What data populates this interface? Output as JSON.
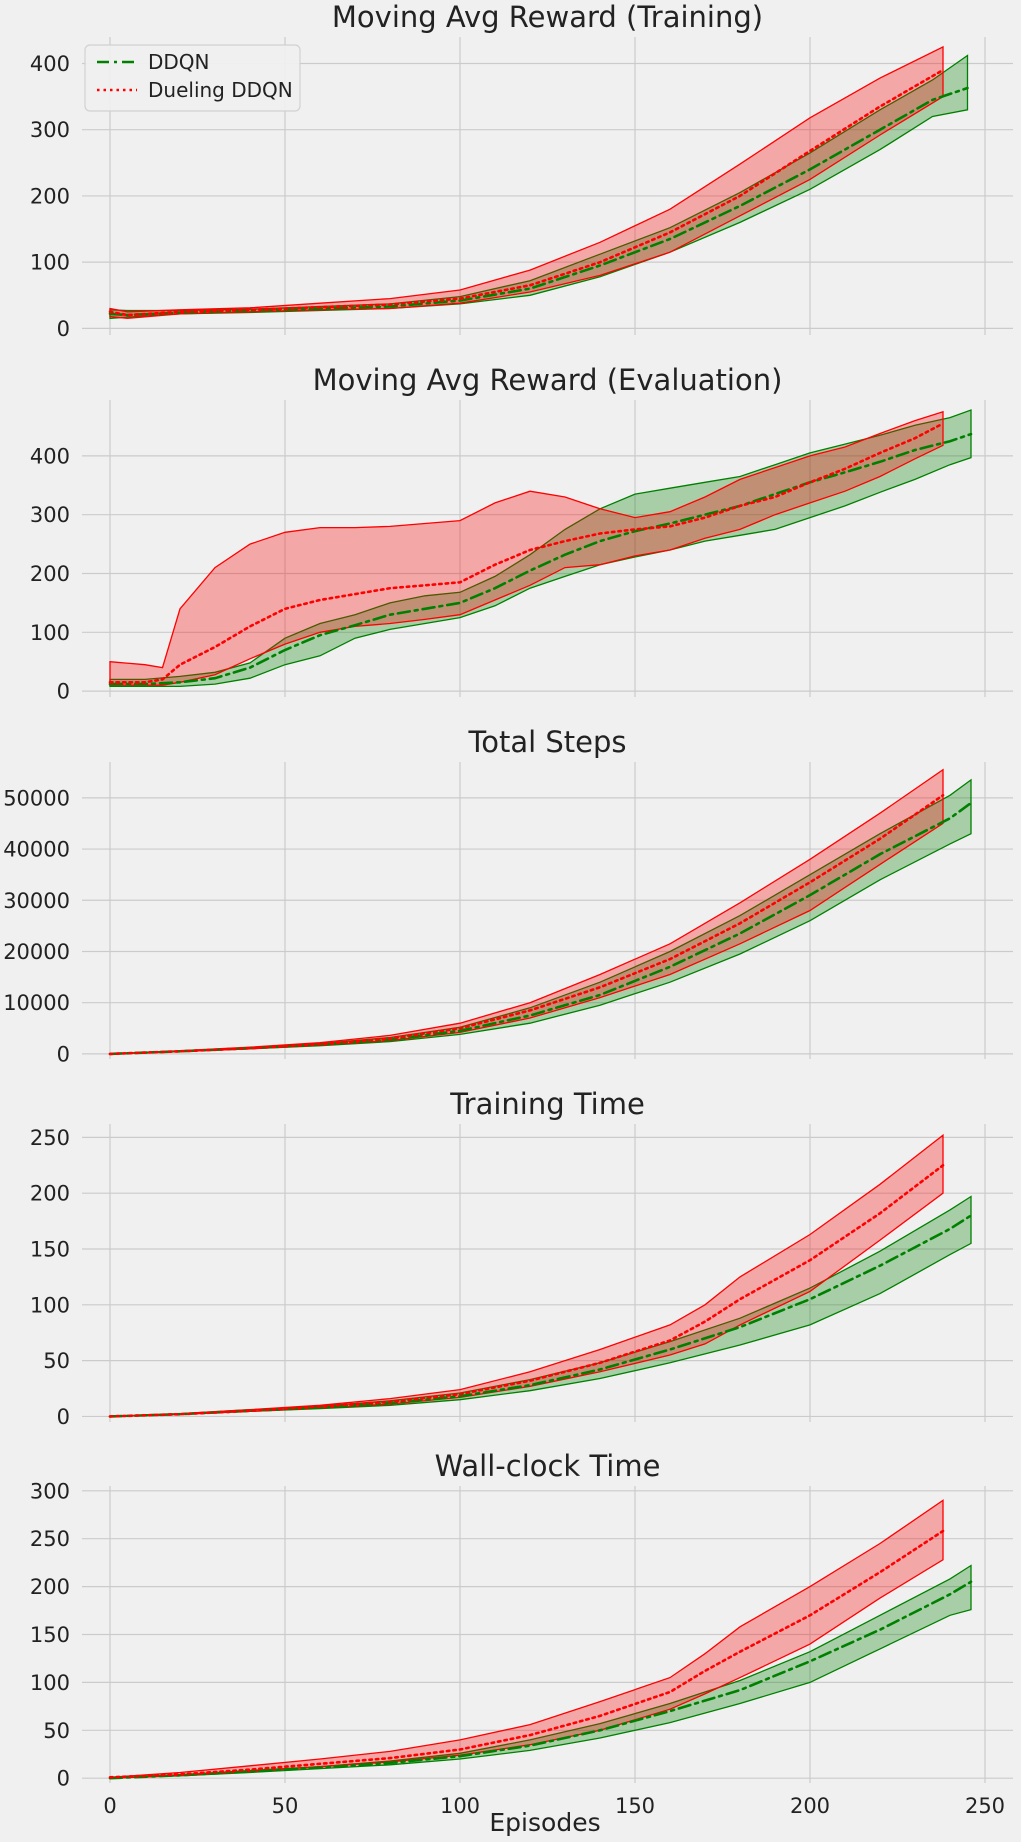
{
  "figure": {
    "xlabel": "Episodes",
    "xlim": [
      -8,
      258
    ],
    "xticks": [
      0,
      50,
      100,
      150,
      200,
      250
    ],
    "legend": {
      "placement": "top-left",
      "in_panel": 0
    }
  },
  "colors": {
    "ddqn": "#008000",
    "dueling": "#ff0000",
    "ddqn_fill": "rgba(0,128,0,0.3)",
    "dueling_fill": "rgba(255,0,0,0.3)",
    "background": "#f0f0f0",
    "grid": "#cbcbcb"
  },
  "chart_data": [
    {
      "type": "line",
      "title": "Moving Avg Reward (Training)",
      "xlabel": "",
      "ylabel": "",
      "ylim": [
        -10,
        440
      ],
      "yticks": [
        0,
        100,
        200,
        300,
        400
      ],
      "grid": true,
      "series": [
        {
          "name": "DDQN",
          "style": "dashdot",
          "color": "#008000",
          "x": [
            0,
            5,
            20,
            40,
            60,
            80,
            100,
            120,
            140,
            160,
            180,
            200,
            220,
            235,
            245
          ],
          "mean": [
            22,
            20,
            24,
            27,
            30,
            33,
            42,
            60,
            95,
            135,
            185,
            240,
            300,
            345,
            363
          ],
          "upper": [
            28,
            27,
            27,
            29,
            33,
            37,
            48,
            72,
            112,
            152,
            205,
            265,
            330,
            375,
            412
          ],
          "lower": [
            15,
            17,
            22,
            24,
            27,
            30,
            37,
            50,
            78,
            115,
            160,
            210,
            270,
            320,
            330
          ]
        },
        {
          "name": "Dueling DDQN",
          "style": "dotted",
          "color": "#ff0000",
          "x": [
            0,
            5,
            20,
            40,
            60,
            80,
            100,
            120,
            140,
            160,
            180,
            200,
            220,
            238
          ],
          "mean": [
            25,
            20,
            25,
            28,
            32,
            36,
            45,
            65,
            100,
            145,
            200,
            268,
            335,
            390
          ],
          "upper": [
            30,
            25,
            28,
            31,
            38,
            45,
            58,
            88,
            130,
            180,
            248,
            318,
            378,
            425
          ],
          "lower": [
            18,
            15,
            22,
            25,
            28,
            30,
            38,
            55,
            80,
            115,
            170,
            225,
            292,
            350
          ]
        }
      ]
    },
    {
      "type": "line",
      "title": "Moving Avg Reward (Evaluation)",
      "xlabel": "",
      "ylabel": "",
      "ylim": [
        -10,
        495
      ],
      "yticks": [
        0,
        100,
        200,
        300,
        400
      ],
      "grid": true,
      "series": [
        {
          "name": "DDQN",
          "style": "dashdot",
          "color": "#008000",
          "x": [
            0,
            10,
            20,
            30,
            40,
            50,
            60,
            70,
            80,
            90,
            100,
            110,
            120,
            130,
            140,
            150,
            160,
            170,
            180,
            190,
            200,
            210,
            220,
            230,
            240,
            246
          ],
          "mean": [
            12,
            12,
            15,
            22,
            40,
            70,
            95,
            112,
            130,
            140,
            150,
            175,
            205,
            232,
            255,
            272,
            285,
            300,
            315,
            335,
            355,
            372,
            390,
            410,
            425,
            437
          ],
          "upper": [
            20,
            20,
            25,
            32,
            48,
            90,
            115,
            130,
            150,
            162,
            168,
            195,
            232,
            275,
            310,
            335,
            345,
            355,
            365,
            385,
            405,
            420,
            435,
            452,
            465,
            478
          ],
          "lower": [
            8,
            8,
            8,
            12,
            22,
            45,
            60,
            90,
            105,
            115,
            125,
            145,
            175,
            195,
            215,
            228,
            240,
            255,
            265,
            275,
            295,
            315,
            338,
            360,
            385,
            397
          ]
        },
        {
          "name": "Dueling DDQN",
          "style": "dotted",
          "color": "#ff0000",
          "x": [
            0,
            10,
            15,
            20,
            30,
            40,
            50,
            60,
            70,
            80,
            90,
            100,
            110,
            120,
            130,
            140,
            150,
            160,
            170,
            180,
            190,
            200,
            210,
            220,
            230,
            238
          ],
          "mean": [
            15,
            15,
            20,
            45,
            75,
            110,
            140,
            155,
            165,
            175,
            180,
            185,
            215,
            240,
            255,
            268,
            275,
            280,
            295,
            315,
            330,
            355,
            378,
            405,
            430,
            455
          ],
          "upper": [
            50,
            45,
            40,
            140,
            210,
            250,
            270,
            278,
            278,
            280,
            285,
            290,
            320,
            340,
            330,
            310,
            295,
            305,
            330,
            360,
            380,
            400,
            415,
            438,
            460,
            475
          ],
          "lower": [
            10,
            10,
            10,
            15,
            28,
            55,
            80,
            100,
            110,
            115,
            122,
            130,
            155,
            180,
            210,
            215,
            230,
            240,
            260,
            275,
            300,
            320,
            340,
            365,
            395,
            418
          ]
        }
      ]
    },
    {
      "type": "line",
      "title": "Total Steps",
      "xlabel": "",
      "ylabel": "",
      "ylim": [
        -1000,
        57000
      ],
      "yticks": [
        0,
        10000,
        20000,
        30000,
        40000,
        50000
      ],
      "grid": true,
      "series": [
        {
          "name": "DDQN",
          "style": "dashdot",
          "color": "#008000",
          "x": [
            0,
            20,
            40,
            60,
            80,
            100,
            120,
            140,
            160,
            180,
            200,
            220,
            240,
            246
          ],
          "mean": [
            0,
            500,
            1100,
            1800,
            2800,
            4500,
            7500,
            11500,
            17000,
            23500,
            31000,
            39000,
            46000,
            49000
          ],
          "upper": [
            0,
            600,
            1200,
            2000,
            3200,
            5200,
            9000,
            14000,
            20000,
            27000,
            35000,
            43000,
            50500,
            53500
          ],
          "lower": [
            0,
            450,
            1000,
            1600,
            2400,
            3800,
            6000,
            9500,
            14000,
            19500,
            26000,
            34000,
            41000,
            43000
          ]
        },
        {
          "name": "Dueling DDQN",
          "style": "dotted",
          "color": "#ff0000",
          "x": [
            0,
            20,
            40,
            60,
            80,
            100,
            120,
            140,
            160,
            180,
            200,
            220,
            238
          ],
          "mean": [
            0,
            500,
            1100,
            1900,
            3000,
            5000,
            8500,
            13000,
            18500,
            25500,
            33500,
            42000,
            50500
          ],
          "upper": [
            0,
            600,
            1300,
            2200,
            3600,
            6000,
            10000,
            15500,
            21500,
            29500,
            38000,
            47000,
            55500
          ],
          "lower": [
            0,
            450,
            1000,
            1700,
            2600,
            4200,
            7000,
            11000,
            15500,
            21500,
            28000,
            37000,
            45000
          ]
        }
      ]
    },
    {
      "type": "line",
      "title": "Training Time",
      "xlabel": "",
      "ylabel": "",
      "ylim": [
        -5,
        262
      ],
      "yticks": [
        0,
        50,
        100,
        150,
        200,
        250
      ],
      "grid": true,
      "series": [
        {
          "name": "DDQN",
          "style": "dashdot",
          "color": "#008000",
          "x": [
            0,
            20,
            40,
            60,
            80,
            100,
            120,
            140,
            160,
            180,
            200,
            220,
            240,
            246
          ],
          "mean": [
            0,
            2,
            5,
            8,
            12,
            18,
            28,
            42,
            60,
            80,
            105,
            135,
            168,
            180
          ],
          "upper": [
            0,
            2.5,
            6,
            9,
            14,
            21,
            33,
            48,
            67,
            88,
            115,
            148,
            185,
            197
          ],
          "lower": [
            0,
            1.8,
            4.5,
            7,
            10,
            15,
            23,
            34,
            48,
            64,
            82,
            110,
            145,
            155
          ]
        },
        {
          "name": "Dueling DDQN",
          "style": "dotted",
          "color": "#ff0000",
          "x": [
            0,
            20,
            40,
            60,
            80,
            100,
            120,
            140,
            160,
            170,
            180,
            200,
            220,
            238
          ],
          "mean": [
            0,
            2,
            5,
            9,
            13,
            20,
            32,
            48,
            68,
            85,
            105,
            140,
            182,
            225
          ],
          "upper": [
            0,
            2.5,
            6,
            10,
            16,
            24,
            40,
            60,
            82,
            100,
            125,
            163,
            208,
            252
          ],
          "lower": [
            0,
            1.8,
            4.5,
            7.5,
            11,
            17,
            27,
            40,
            55,
            65,
            82,
            112,
            158,
            200
          ]
        }
      ]
    },
    {
      "type": "line",
      "title": "Wall-clock Time",
      "xlabel": "Episodes",
      "ylabel": "",
      "ylim": [
        -5,
        305
      ],
      "yticks": [
        0,
        50,
        100,
        150,
        200,
        250,
        300
      ],
      "grid": true,
      "series": [
        {
          "name": "DDQN",
          "style": "dashdot",
          "color": "#008000",
          "x": [
            0,
            20,
            40,
            60,
            80,
            100,
            120,
            140,
            160,
            180,
            200,
            220,
            240,
            246
          ],
          "mean": [
            0,
            3,
            7,
            11,
            16,
            23,
            34,
            50,
            70,
            92,
            122,
            155,
            192,
            205
          ],
          "upper": [
            0,
            3.5,
            8,
            12,
            18,
            26,
            40,
            57,
            78,
            102,
            132,
            170,
            208,
            222
          ],
          "lower": [
            0,
            2.5,
            6,
            10,
            14,
            20,
            29,
            42,
            58,
            78,
            100,
            135,
            170,
            176
          ]
        },
        {
          "name": "Dueling DDQN",
          "style": "dotted",
          "color": "#ff0000",
          "x": [
            0,
            20,
            40,
            60,
            80,
            100,
            120,
            140,
            160,
            170,
            180,
            200,
            220,
            238
          ],
          "mean": [
            1,
            4,
            9,
            15,
            21,
            30,
            45,
            65,
            90,
            112,
            132,
            170,
            215,
            258
          ],
          "upper": [
            1,
            6,
            13,
            20,
            28,
            40,
            56,
            80,
            105,
            130,
            158,
            200,
            245,
            290
          ],
          "lower": [
            0,
            3,
            7,
            12,
            17,
            24,
            35,
            50,
            72,
            88,
            105,
            140,
            188,
            228
          ]
        }
      ]
    }
  ]
}
